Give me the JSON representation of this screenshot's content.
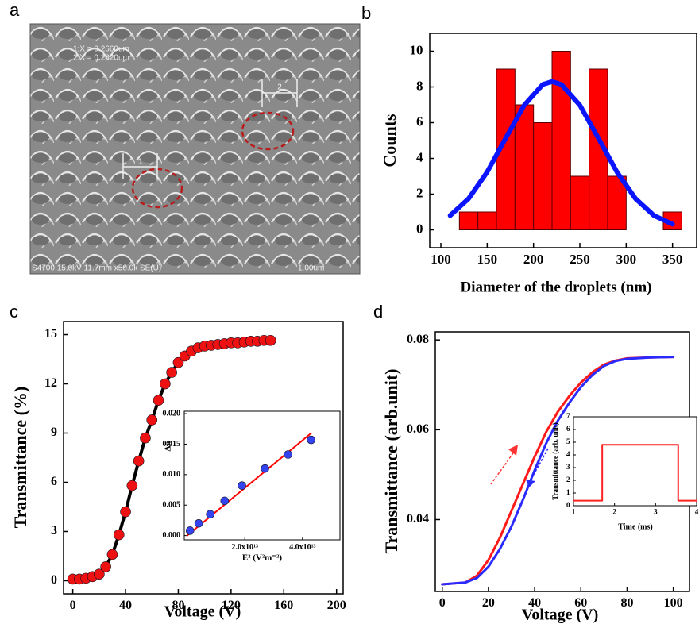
{
  "image": {
    "label": "a",
    "measure_1": "1:X = 0.2660um",
    "measure_2": "2:X = 0.2820um",
    "marker_1": "1",
    "marker_2": "2",
    "info": "S4700 15.0kV 11.7mm x50.0k SE(U)",
    "scale": "1.00um"
  },
  "chart_data": [
    {
      "type": "combo",
      "label": "b",
      "xlabel": "Diameter of the  droplets (nm)",
      "ylabel": "Counts",
      "xlim": [
        88,
        376
      ],
      "xticks": [
        100,
        150,
        200,
        250,
        300,
        350
      ],
      "ylim": [
        -1,
        11
      ],
      "yticks": [
        0,
        2,
        4,
        6,
        8,
        10
      ],
      "series": [
        {
          "type": "histogram",
          "color": "#ff0000",
          "bins": [
            100,
            120,
            140,
            160,
            180,
            200,
            220,
            240,
            260,
            280,
            300,
            320,
            340,
            360
          ],
          "values": [
            0,
            1,
            1,
            9,
            7,
            6,
            10,
            3,
            9,
            3,
            0,
            0,
            1
          ]
        },
        {
          "type": "line",
          "color": "#0a14ff",
          "x": [
            110,
            130,
            150,
            170,
            190,
            210,
            220,
            230,
            250,
            270,
            290,
            310,
            330,
            350
          ],
          "values": [
            0.8,
            1.75,
            3.24,
            5.13,
            6.98,
            8.14,
            8.3,
            8.14,
            6.98,
            5.13,
            3.24,
            1.75,
            0.8,
            0.32
          ]
        }
      ]
    },
    {
      "type": "combo",
      "label": "c",
      "xlabel": "Voltage (V)",
      "ylabel": "Transmittance (%)",
      "xlim": [
        -7,
        205
      ],
      "xticks": [
        0,
        40,
        80,
        120,
        160,
        200
      ],
      "ylim": [
        -0.8,
        15.8
      ],
      "yticks": [
        0,
        3,
        6,
        9,
        12,
        15
      ],
      "series": [
        {
          "type": "line-markers",
          "color": "#ee1111",
          "line_color": "#000000",
          "x": [
            0,
            5,
            10,
            15,
            20,
            25,
            30,
            35,
            40,
            45,
            50,
            55,
            60,
            65,
            70,
            75,
            80,
            85,
            90,
            95,
            100,
            105,
            110,
            115,
            120,
            125,
            130,
            135,
            140,
            145,
            150
          ],
          "values": [
            0.1,
            0.1,
            0.15,
            0.25,
            0.4,
            0.85,
            1.6,
            2.8,
            4.2,
            5.8,
            7.3,
            8.7,
            9.8,
            11,
            12,
            12.7,
            13.3,
            13.7,
            14,
            14.2,
            14.3,
            14.35,
            14.4,
            14.45,
            14.5,
            14.5,
            14.55,
            14.6,
            14.6,
            14.65,
            14.65
          ]
        }
      ]
    },
    {
      "type": "combo",
      "xlabel": "E² (V²m⁻²)",
      "ylabel": "Δn",
      "xlim": [
        -1000000000000.0,
        53000000000000.0
      ],
      "xticks": [
        {
          "value": 20000000000000.0,
          "label": "2.0x10¹³"
        },
        {
          "value": 40000000000000.0,
          "label": "4.0x10¹³"
        }
      ],
      "ylim": [
        -0.0007,
        0.0204
      ],
      "yticks": [
        {
          "value": 0,
          "label": "0.000"
        },
        0.005,
        {
          "value": 0.01,
          "label": "0.010"
        },
        0.015,
        {
          "value": 0.02,
          "label": "0.020"
        }
      ],
      "series": [
        {
          "type": "line",
          "color": "#ff0000",
          "x": [
            0,
            43000000000000.0
          ],
          "values": [
            0,
            0.0168
          ]
        },
        {
          "type": "scatter",
          "color": "#3344ee",
          "x": [
            1000000000000.0,
            4000000000000.0,
            8000000000000.0,
            13000000000000.0,
            19000000000000.0,
            27000000000000.0,
            35000000000000.0,
            43000000000000.0
          ],
          "values": [
            0.0008,
            0.002,
            0.0035,
            0.0057,
            0.0082,
            0.011,
            0.0133,
            0.0157
          ]
        }
      ]
    },
    {
      "type": "combo",
      "label": "d",
      "xlabel": "Voltage (V)",
      "ylabel": "Transmittance (arb.unit)",
      "xlim": [
        -3,
        107
      ],
      "xticks": [
        0,
        20,
        40,
        60,
        80,
        100
      ],
      "ylim": [
        0.024,
        0.0818
      ],
      "yticks": [
        0.04,
        0.06,
        0.08
      ],
      "series": [
        {
          "type": "line",
          "color": "#ff1a1a",
          "x": [
            0,
            10,
            15,
            20,
            25,
            30,
            35,
            40,
            45,
            50,
            55,
            60,
            65,
            70,
            75,
            80,
            90,
            100
          ],
          "values": [
            0.0256,
            0.026,
            0.0275,
            0.031,
            0.036,
            0.042,
            0.048,
            0.054,
            0.0595,
            0.064,
            0.0675,
            0.0705,
            0.0728,
            0.0745,
            0.0754,
            0.0759,
            0.0761,
            0.0762
          ]
        },
        {
          "type": "line",
          "color": "#2a2aff",
          "x": [
            0,
            10,
            15,
            20,
            25,
            30,
            35,
            40,
            45,
            50,
            55,
            60,
            65,
            70,
            75,
            80,
            90,
            100
          ],
          "values": [
            0.0256,
            0.026,
            0.027,
            0.0295,
            0.0335,
            0.0385,
            0.0445,
            0.051,
            0.057,
            0.062,
            0.066,
            0.0695,
            0.0722,
            0.0742,
            0.0753,
            0.0758,
            0.0761,
            0.0762
          ]
        }
      ]
    },
    {
      "type": "combo",
      "xlabel": "Time (ms)",
      "ylabel": "Transmittance (arb. unit)",
      "xlim": [
        1,
        4
      ],
      "xticks": [
        1,
        2,
        3,
        4
      ],
      "ylim": [
        0,
        7
      ],
      "yticks": [
        0,
        1,
        2,
        3,
        4,
        5,
        6,
        7
      ],
      "series": [
        {
          "type": "line",
          "color": "#ff2222",
          "x": [
            1,
            1.7,
            1.7,
            3.55,
            3.55,
            4
          ],
          "values": [
            0.4,
            0.4,
            4.8,
            4.8,
            0.4,
            0.4
          ]
        }
      ]
    }
  ]
}
